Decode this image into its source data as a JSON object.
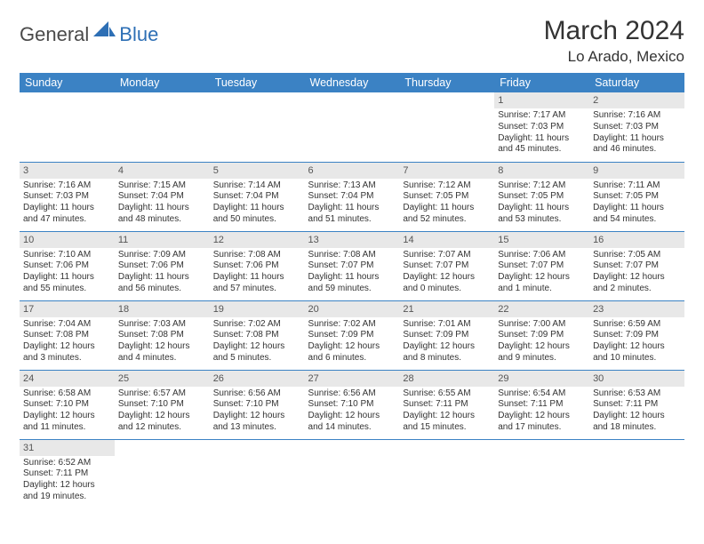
{
  "logo": {
    "general": "General",
    "blue": "Blue"
  },
  "title": "March 2024",
  "location": "Lo Arado, Mexico",
  "colors": {
    "header_bg": "#3b82c4",
    "header_text": "#ffffff",
    "daybar_bg": "#e8e8e8",
    "border": "#3b82c4",
    "text": "#333333",
    "logo_blue": "#2d6fb5"
  },
  "weekday_labels": [
    "Sunday",
    "Monday",
    "Tuesday",
    "Wednesday",
    "Thursday",
    "Friday",
    "Saturday"
  ],
  "weeks": [
    [
      {
        "day": null
      },
      {
        "day": null
      },
      {
        "day": null
      },
      {
        "day": null
      },
      {
        "day": null
      },
      {
        "day": "1",
        "sunrise": "Sunrise: 7:17 AM",
        "sunset": "Sunset: 7:03 PM",
        "daylight1": "Daylight: 11 hours",
        "daylight2": "and 45 minutes."
      },
      {
        "day": "2",
        "sunrise": "Sunrise: 7:16 AM",
        "sunset": "Sunset: 7:03 PM",
        "daylight1": "Daylight: 11 hours",
        "daylight2": "and 46 minutes."
      }
    ],
    [
      {
        "day": "3",
        "sunrise": "Sunrise: 7:16 AM",
        "sunset": "Sunset: 7:03 PM",
        "daylight1": "Daylight: 11 hours",
        "daylight2": "and 47 minutes."
      },
      {
        "day": "4",
        "sunrise": "Sunrise: 7:15 AM",
        "sunset": "Sunset: 7:04 PM",
        "daylight1": "Daylight: 11 hours",
        "daylight2": "and 48 minutes."
      },
      {
        "day": "5",
        "sunrise": "Sunrise: 7:14 AM",
        "sunset": "Sunset: 7:04 PM",
        "daylight1": "Daylight: 11 hours",
        "daylight2": "and 50 minutes."
      },
      {
        "day": "6",
        "sunrise": "Sunrise: 7:13 AM",
        "sunset": "Sunset: 7:04 PM",
        "daylight1": "Daylight: 11 hours",
        "daylight2": "and 51 minutes."
      },
      {
        "day": "7",
        "sunrise": "Sunrise: 7:12 AM",
        "sunset": "Sunset: 7:05 PM",
        "daylight1": "Daylight: 11 hours",
        "daylight2": "and 52 minutes."
      },
      {
        "day": "8",
        "sunrise": "Sunrise: 7:12 AM",
        "sunset": "Sunset: 7:05 PM",
        "daylight1": "Daylight: 11 hours",
        "daylight2": "and 53 minutes."
      },
      {
        "day": "9",
        "sunrise": "Sunrise: 7:11 AM",
        "sunset": "Sunset: 7:05 PM",
        "daylight1": "Daylight: 11 hours",
        "daylight2": "and 54 minutes."
      }
    ],
    [
      {
        "day": "10",
        "sunrise": "Sunrise: 7:10 AM",
        "sunset": "Sunset: 7:06 PM",
        "daylight1": "Daylight: 11 hours",
        "daylight2": "and 55 minutes."
      },
      {
        "day": "11",
        "sunrise": "Sunrise: 7:09 AM",
        "sunset": "Sunset: 7:06 PM",
        "daylight1": "Daylight: 11 hours",
        "daylight2": "and 56 minutes."
      },
      {
        "day": "12",
        "sunrise": "Sunrise: 7:08 AM",
        "sunset": "Sunset: 7:06 PM",
        "daylight1": "Daylight: 11 hours",
        "daylight2": "and 57 minutes."
      },
      {
        "day": "13",
        "sunrise": "Sunrise: 7:08 AM",
        "sunset": "Sunset: 7:07 PM",
        "daylight1": "Daylight: 11 hours",
        "daylight2": "and 59 minutes."
      },
      {
        "day": "14",
        "sunrise": "Sunrise: 7:07 AM",
        "sunset": "Sunset: 7:07 PM",
        "daylight1": "Daylight: 12 hours",
        "daylight2": "and 0 minutes."
      },
      {
        "day": "15",
        "sunrise": "Sunrise: 7:06 AM",
        "sunset": "Sunset: 7:07 PM",
        "daylight1": "Daylight: 12 hours",
        "daylight2": "and 1 minute."
      },
      {
        "day": "16",
        "sunrise": "Sunrise: 7:05 AM",
        "sunset": "Sunset: 7:07 PM",
        "daylight1": "Daylight: 12 hours",
        "daylight2": "and 2 minutes."
      }
    ],
    [
      {
        "day": "17",
        "sunrise": "Sunrise: 7:04 AM",
        "sunset": "Sunset: 7:08 PM",
        "daylight1": "Daylight: 12 hours",
        "daylight2": "and 3 minutes."
      },
      {
        "day": "18",
        "sunrise": "Sunrise: 7:03 AM",
        "sunset": "Sunset: 7:08 PM",
        "daylight1": "Daylight: 12 hours",
        "daylight2": "and 4 minutes."
      },
      {
        "day": "19",
        "sunrise": "Sunrise: 7:02 AM",
        "sunset": "Sunset: 7:08 PM",
        "daylight1": "Daylight: 12 hours",
        "daylight2": "and 5 minutes."
      },
      {
        "day": "20",
        "sunrise": "Sunrise: 7:02 AM",
        "sunset": "Sunset: 7:09 PM",
        "daylight1": "Daylight: 12 hours",
        "daylight2": "and 6 minutes."
      },
      {
        "day": "21",
        "sunrise": "Sunrise: 7:01 AM",
        "sunset": "Sunset: 7:09 PM",
        "daylight1": "Daylight: 12 hours",
        "daylight2": "and 8 minutes."
      },
      {
        "day": "22",
        "sunrise": "Sunrise: 7:00 AM",
        "sunset": "Sunset: 7:09 PM",
        "daylight1": "Daylight: 12 hours",
        "daylight2": "and 9 minutes."
      },
      {
        "day": "23",
        "sunrise": "Sunrise: 6:59 AM",
        "sunset": "Sunset: 7:09 PM",
        "daylight1": "Daylight: 12 hours",
        "daylight2": "and 10 minutes."
      }
    ],
    [
      {
        "day": "24",
        "sunrise": "Sunrise: 6:58 AM",
        "sunset": "Sunset: 7:10 PM",
        "daylight1": "Daylight: 12 hours",
        "daylight2": "and 11 minutes."
      },
      {
        "day": "25",
        "sunrise": "Sunrise: 6:57 AM",
        "sunset": "Sunset: 7:10 PM",
        "daylight1": "Daylight: 12 hours",
        "daylight2": "and 12 minutes."
      },
      {
        "day": "26",
        "sunrise": "Sunrise: 6:56 AM",
        "sunset": "Sunset: 7:10 PM",
        "daylight1": "Daylight: 12 hours",
        "daylight2": "and 13 minutes."
      },
      {
        "day": "27",
        "sunrise": "Sunrise: 6:56 AM",
        "sunset": "Sunset: 7:10 PM",
        "daylight1": "Daylight: 12 hours",
        "daylight2": "and 14 minutes."
      },
      {
        "day": "28",
        "sunrise": "Sunrise: 6:55 AM",
        "sunset": "Sunset: 7:11 PM",
        "daylight1": "Daylight: 12 hours",
        "daylight2": "and 15 minutes."
      },
      {
        "day": "29",
        "sunrise": "Sunrise: 6:54 AM",
        "sunset": "Sunset: 7:11 PM",
        "daylight1": "Daylight: 12 hours",
        "daylight2": "and 17 minutes."
      },
      {
        "day": "30",
        "sunrise": "Sunrise: 6:53 AM",
        "sunset": "Sunset: 7:11 PM",
        "daylight1": "Daylight: 12 hours",
        "daylight2": "and 18 minutes."
      }
    ],
    [
      {
        "day": "31",
        "sunrise": "Sunrise: 6:52 AM",
        "sunset": "Sunset: 7:11 PM",
        "daylight1": "Daylight: 12 hours",
        "daylight2": "and 19 minutes."
      },
      {
        "day": null
      },
      {
        "day": null
      },
      {
        "day": null
      },
      {
        "day": null
      },
      {
        "day": null
      },
      {
        "day": null
      }
    ]
  ]
}
